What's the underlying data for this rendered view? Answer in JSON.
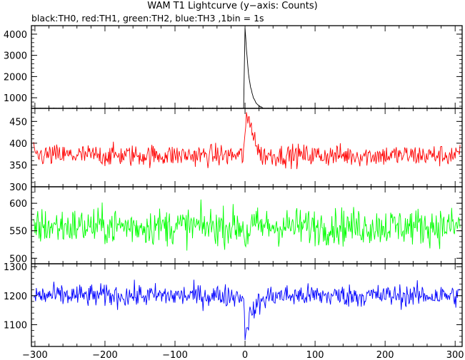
{
  "title": "WAM T1 Lightcurve (y−axis: Counts)",
  "subtitle": "black:TH0, red:TH1, green:TH2, blue:TH3 ,1bin = 1s",
  "chart_data": {
    "type": "line",
    "xlim": [
      -305,
      310
    ],
    "x_ticks": [
      -300,
      -200,
      -100,
      0,
      100,
      200,
      300
    ],
    "x_tick_labels": [
      "−300",
      "−200",
      "−100",
      "0",
      "100",
      "200",
      "300"
    ],
    "bin_seconds": 1,
    "panels": [
      {
        "name": "TH0",
        "color": "#000000",
        "ylim": [
          500,
          4400
        ],
        "y_ticks": [
          1000,
          2000,
          3000,
          4000
        ],
        "y_tick_labels": [
          "1000",
          "2000",
          "3000",
          "4000"
        ],
        "baseline": 500,
        "noise": 12,
        "burst": [
          [
            -2,
            500
          ],
          [
            0,
            4300
          ],
          [
            2,
            3300
          ],
          [
            5,
            2100
          ],
          [
            8,
            1500
          ],
          [
            12,
            1000
          ],
          [
            16,
            760
          ],
          [
            20,
            600
          ],
          [
            25,
            530
          ]
        ]
      },
      {
        "name": "TH1",
        "color": "#ff0000",
        "ylim": [
          300,
          480
        ],
        "y_ticks": [
          300,
          350,
          400,
          450
        ],
        "y_tick_labels": [
          "300",
          "350",
          "400",
          "450"
        ],
        "baseline": 372,
        "noise": 18,
        "burst": [
          [
            -3,
            372
          ],
          [
            0,
            420
          ],
          [
            3,
            455
          ],
          [
            8,
            445
          ],
          [
            13,
            420
          ],
          [
            18,
            385
          ],
          [
            23,
            372
          ]
        ]
      },
      {
        "name": "TH2",
        "color": "#00ff00",
        "ylim": [
          490,
          630
        ],
        "y_ticks": [
          500,
          550,
          600
        ],
        "y_tick_labels": [
          "500",
          "550",
          "600"
        ],
        "baseline": 558,
        "noise": 24,
        "burst": [
          [
            -2,
            558
          ],
          [
            0,
            530
          ],
          [
            3,
            545
          ],
          [
            8,
            555
          ]
        ]
      },
      {
        "name": "TH3",
        "color": "#0000ff",
        "ylim": [
          1025,
          1310
        ],
        "y_ticks": [
          1100,
          1200,
          1300
        ],
        "y_tick_labels": [
          "1100",
          "1200",
          "1300"
        ],
        "baseline": 1200,
        "noise": 28,
        "burst": [
          [
            -3,
            1200
          ],
          [
            0,
            1080
          ],
          [
            5,
            1120
          ],
          [
            12,
            1150
          ],
          [
            20,
            1175
          ],
          [
            32,
            1195
          ],
          [
            40,
            1200
          ]
        ]
      }
    ]
  }
}
